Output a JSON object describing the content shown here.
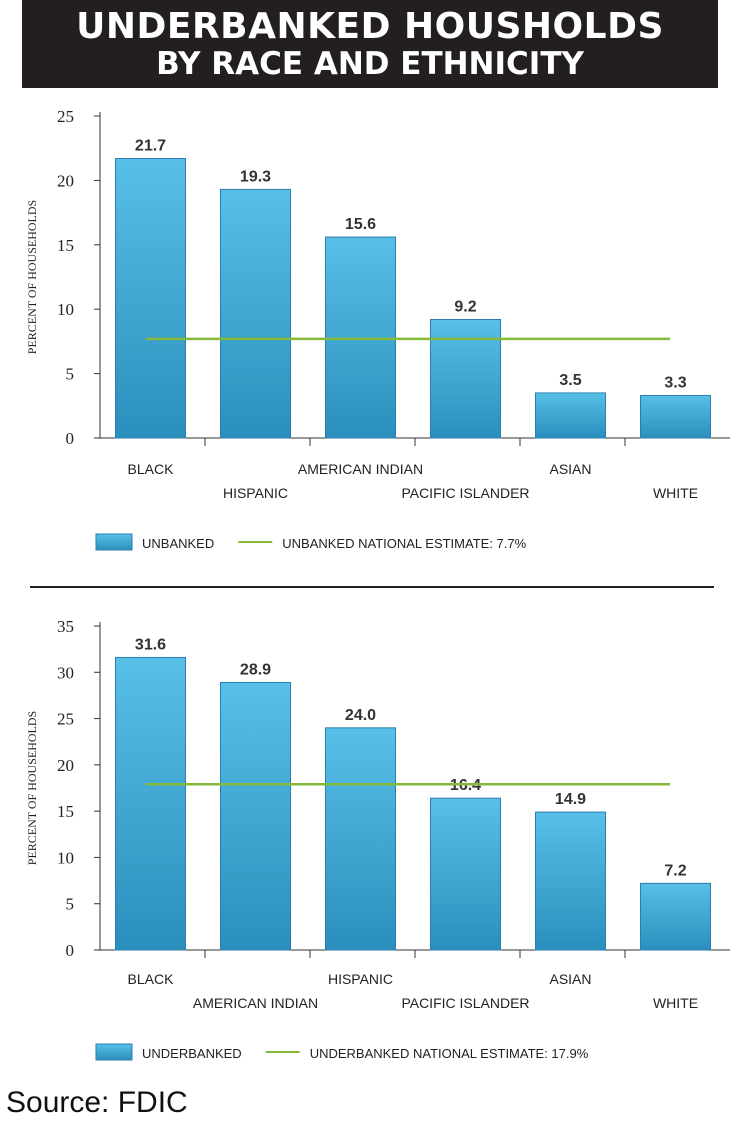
{
  "header": {
    "line1": "UNDERBANKED HOUSHOLDS",
    "line2": "BY RACE AND ETHNICITY"
  },
  "source": "Source: FDIC",
  "colors": {
    "bar_top": "#58bfe7",
    "bar_bottom": "#2b8fbd",
    "bar_stroke": "#2a7fae",
    "reference_line": "#86b83a"
  },
  "chart_data": [
    {
      "type": "bar",
      "title": "",
      "xlabel": "",
      "ylabel": "PERCENT OF HOUSEHOLDS",
      "ylim": [
        0,
        25
      ],
      "yticks": [
        0,
        5,
        10,
        15,
        20,
        25
      ],
      "categories": [
        "BLACK",
        "HISPANIC",
        "AMERICAN INDIAN",
        "PACIFIC ISLANDER",
        "ASIAN",
        "WHITE"
      ],
      "series": [
        {
          "name": "UNBANKED",
          "values": [
            21.7,
            19.3,
            15.6,
            9.2,
            3.5,
            3.3
          ]
        }
      ],
      "value_labels": [
        "21.7",
        "19.3",
        "15.6",
        "9.2",
        "3.5",
        "3.3"
      ],
      "reference_line": {
        "name": "UNBANKED NATIONAL ESTIMATE: 7.7%",
        "value": 7.7
      },
      "legend": {
        "position": "bottom-left",
        "bar_label": "UNBANKED",
        "line_label": "UNBANKED NATIONAL ESTIMATE: 7.7%"
      },
      "grid": false
    },
    {
      "type": "bar",
      "title": "",
      "xlabel": "",
      "ylabel": "PERCENT OF HOUSEHOLDS",
      "ylim": [
        0,
        35
      ],
      "yticks": [
        0,
        5,
        10,
        15,
        20,
        25,
        30,
        35
      ],
      "categories": [
        "BLACK",
        "AMERICAN INDIAN",
        "HISPANIC",
        "PACIFIC ISLANDER",
        "ASIAN",
        "WHITE"
      ],
      "series": [
        {
          "name": "UNDERBANKED",
          "values": [
            31.6,
            28.9,
            24.0,
            16.4,
            14.9,
            7.2
          ]
        }
      ],
      "value_labels": [
        "31.6",
        "28.9",
        "24.0",
        "16.4",
        "14.9",
        "7.2"
      ],
      "reference_line": {
        "name": "UNDERBANKED NATIONAL ESTIMATE: 17.9%",
        "value": 17.9
      },
      "legend": {
        "position": "bottom-left",
        "bar_label": "UNDERBANKED",
        "line_label": "UNDERBANKED NATIONAL ESTIMATE: 17.9%"
      },
      "grid": false
    }
  ]
}
